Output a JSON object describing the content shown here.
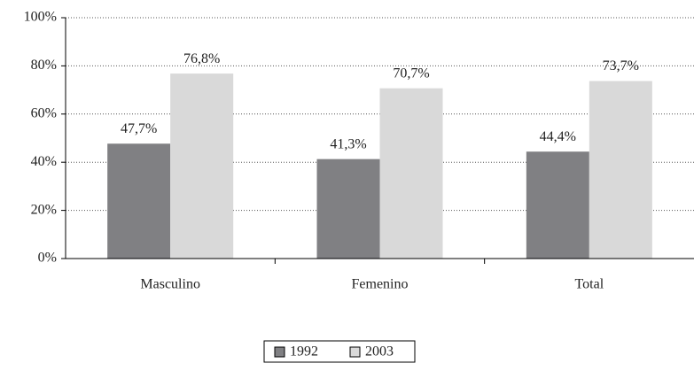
{
  "chart_data": {
    "type": "bar",
    "categories": [
      "Masculino",
      "Femenino",
      "Total"
    ],
    "series": [
      {
        "name": "1992",
        "color": "#808083",
        "values": [
          47.7,
          41.3,
          44.4
        ],
        "value_labels": [
          "47,7%",
          "41,3%",
          "44,4%"
        ]
      },
      {
        "name": "2003",
        "color": "#d9d9d9",
        "values": [
          76.8,
          70.7,
          73.7
        ],
        "value_labels": [
          "76,8%",
          "70,7%",
          "73,7%"
        ]
      }
    ],
    "ylim": [
      0,
      100
    ],
    "yticks": [
      {
        "value": 0,
        "label": "0%"
      },
      {
        "value": 20,
        "label": "20%"
      },
      {
        "value": 40,
        "label": "40%"
      },
      {
        "value": 60,
        "label": "60%"
      },
      {
        "value": 80,
        "label": "80%"
      },
      {
        "value": 100,
        "label": "100%"
      }
    ],
    "grid": true,
    "legend": "bottom"
  }
}
